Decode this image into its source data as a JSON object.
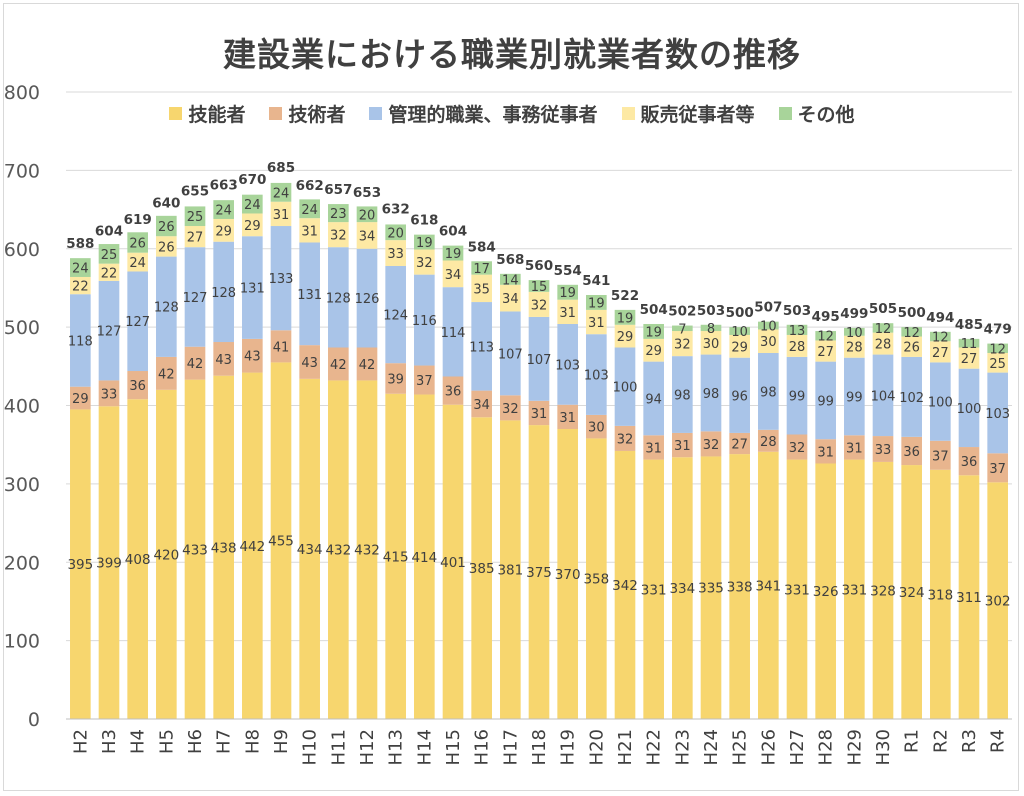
{
  "chart_data": {
    "type": "bar",
    "stacked": true,
    "title": "建設業における職業別就業者数の推移",
    "xlabel": "",
    "ylabel": "",
    "ylim": [
      0,
      800
    ],
    "yticks": [
      0,
      100,
      200,
      300,
      400,
      500,
      600,
      700,
      800
    ],
    "grid": true,
    "legend_position": "top",
    "categories": [
      "H2",
      "H3",
      "H4",
      "H5",
      "H6",
      "H7",
      "H8",
      "H9",
      "H10",
      "H11",
      "H12",
      "H13",
      "H14",
      "H15",
      "H16",
      "H17",
      "H18",
      "H19",
      "H20",
      "H21",
      "H22",
      "H23",
      "H24",
      "H25",
      "H26",
      "H27",
      "H28",
      "H29",
      "H30",
      "R1",
      "R2",
      "R3",
      "R4"
    ],
    "series": [
      {
        "name": "技能者",
        "color": "#f7d66e",
        "values": [
          395,
          399,
          408,
          420,
          433,
          438,
          442,
          455,
          434,
          432,
          432,
          415,
          414,
          401,
          385,
          381,
          375,
          370,
          358,
          342,
          331,
          334,
          335,
          338,
          341,
          331,
          326,
          331,
          328,
          324,
          318,
          311,
          302
        ]
      },
      {
        "name": "技術者",
        "color": "#e8b58e",
        "values": [
          29,
          33,
          36,
          42,
          42,
          43,
          43,
          41,
          43,
          42,
          42,
          39,
          37,
          36,
          34,
          32,
          31,
          31,
          30,
          32,
          31,
          31,
          32,
          27,
          28,
          32,
          31,
          31,
          33,
          36,
          37,
          36,
          37
        ]
      },
      {
        "name": "管理的職業、事務従事者",
        "color": "#a9c4e8",
        "values": [
          118,
          127,
          127,
          128,
          127,
          128,
          131,
          133,
          131,
          128,
          126,
          124,
          116,
          114,
          113,
          107,
          107,
          103,
          103,
          100,
          94,
          98,
          98,
          96,
          98,
          99,
          99,
          99,
          104,
          102,
          100,
          100,
          103
        ]
      },
      {
        "name": "販売従事者等",
        "color": "#fde9a4",
        "values": [
          22,
          22,
          24,
          26,
          27,
          29,
          29,
          31,
          31,
          32,
          34,
          33,
          32,
          34,
          35,
          34,
          32,
          31,
          31,
          29,
          29,
          32,
          30,
          29,
          30,
          28,
          27,
          28,
          28,
          26,
          27,
          27,
          25
        ]
      },
      {
        "name": "その他",
        "color": "#a8d49a",
        "values": [
          24,
          25,
          26,
          26,
          25,
          24,
          24,
          24,
          24,
          23,
          20,
          20,
          19,
          19,
          17,
          14,
          15,
          19,
          19,
          19,
          19,
          7,
          8,
          10,
          10,
          13,
          12,
          10,
          12,
          12,
          12,
          11,
          12
        ]
      }
    ],
    "totals": [
      588,
      604,
      619,
      640,
      655,
      663,
      670,
      685,
      662,
      657,
      653,
      632,
      618,
      604,
      584,
      568,
      560,
      554,
      541,
      522,
      504,
      502,
      503,
      500,
      507,
      503,
      495,
      499,
      505,
      500,
      494,
      485,
      479
    ]
  }
}
